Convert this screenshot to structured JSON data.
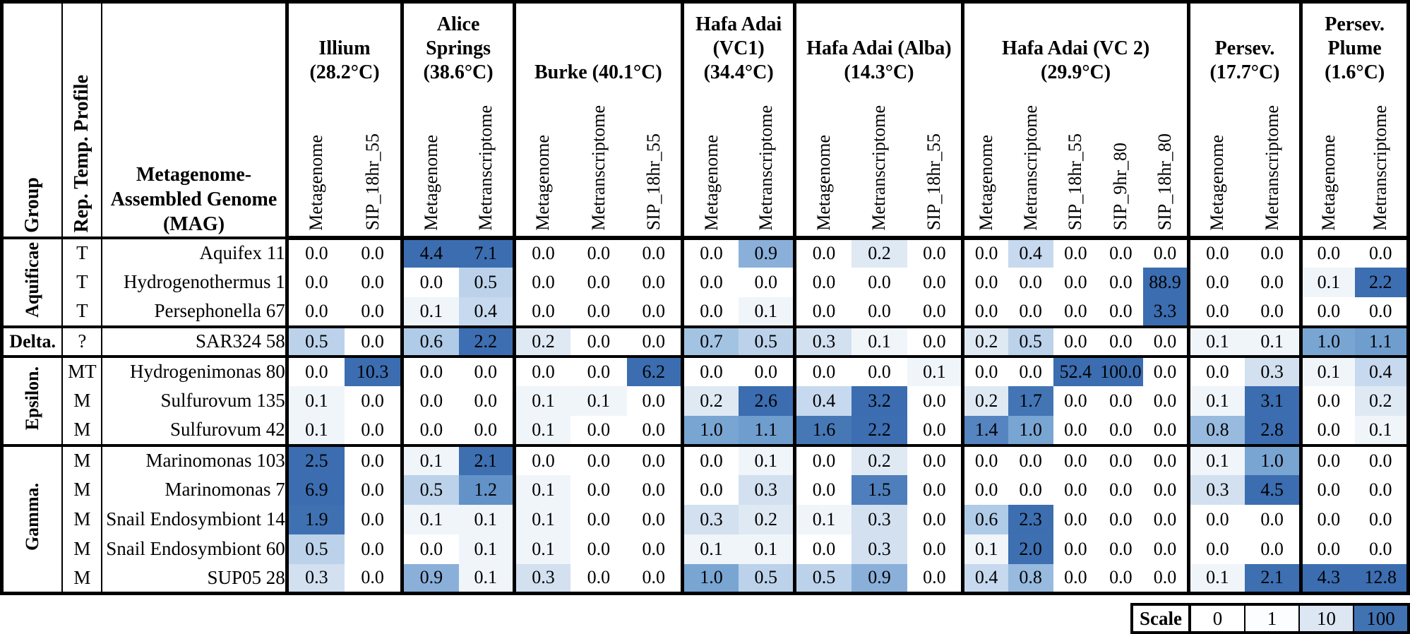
{
  "chart_data": {
    "type": "heatmap",
    "corner_headers": {
      "group": "Group",
      "profile": "Rep. Temp. Profile",
      "mag": "Metagenome-\nAssembled Genome\n(MAG)"
    },
    "column_groups": [
      {
        "label": "Illium\n(28.2°C)",
        "columns": [
          "Metagenome",
          "SIP_18hr_55"
        ]
      },
      {
        "label": "Alice\nSprings\n(38.6°C)",
        "columns": [
          "Metagenome",
          "Metranscriptome"
        ]
      },
      {
        "label": "Burke (40.1°C)",
        "columns": [
          "Metagenome",
          "Metranscriptome",
          "SIP_18hr_55"
        ]
      },
      {
        "label": "Hafa Adai\n(VC1)\n(34.4°C)",
        "columns": [
          "Metagenome",
          "Metranscriptome"
        ]
      },
      {
        "label": "Hafa Adai (Alba)\n(14.3°C)",
        "columns": [
          "Metagenome",
          "Metranscriptome",
          "SIP_18hr_55"
        ]
      },
      {
        "label": "Hafa Adai (VC 2) (29.9°C)",
        "columns": [
          "Metagenome",
          "Metranscriptome",
          "SIP_18hr_55",
          "SIP_9hr_80",
          "SIP_18hr_80"
        ]
      },
      {
        "label": "Persev.\n(17.7°C)",
        "columns": [
          "Metagenome",
          "Metranscriptome"
        ]
      },
      {
        "label": "Persev.\nPlume\n(1.6°C)",
        "columns": [
          "Metagenome",
          "Metranscriptome"
        ]
      }
    ],
    "row_groups": [
      {
        "label": "Aquificae",
        "vertical": true,
        "rows": [
          {
            "profile": "T",
            "mag": "Aquifex 11",
            "values": [
              0.0,
              0.0,
              4.4,
              7.1,
              0.0,
              0.0,
              0.0,
              0.0,
              0.9,
              0.0,
              0.2,
              0.0,
              0.0,
              0.4,
              0.0,
              0.0,
              0.0,
              0.0,
              0.0,
              0.0,
              0.0
            ]
          },
          {
            "profile": "T",
            "mag": "Hydrogenothermus 1",
            "values": [
              0.0,
              0.0,
              0.0,
              0.5,
              0.0,
              0.0,
              0.0,
              0.0,
              0.0,
              0.0,
              0.0,
              0.0,
              0.0,
              0.0,
              0.0,
              0.0,
              88.9,
              0.0,
              0.0,
              0.1,
              2.2
            ]
          },
          {
            "profile": "T",
            "mag": "Persephonella 67",
            "values": [
              0.0,
              0.0,
              0.1,
              0.4,
              0.0,
              0.0,
              0.0,
              0.0,
              0.1,
              0.0,
              0.0,
              0.0,
              0.0,
              0.0,
              0.0,
              0.0,
              3.3,
              0.0,
              0.0,
              0.0,
              0.0
            ]
          }
        ]
      },
      {
        "label": "Delta.",
        "vertical": false,
        "rows": [
          {
            "profile": "?",
            "mag": "SAR324 58",
            "values": [
              0.5,
              0.0,
              0.6,
              2.2,
              0.2,
              0.0,
              0.0,
              0.7,
              0.5,
              0.3,
              0.1,
              0.0,
              0.2,
              0.5,
              0.0,
              0.0,
              0.0,
              0.1,
              0.1,
              1.0,
              1.1
            ]
          }
        ]
      },
      {
        "label": "Epsilon.",
        "vertical": true,
        "rows": [
          {
            "profile": "MT",
            "mag": "Hydrogenimonas 80",
            "values": [
              0.0,
              10.3,
              0.0,
              0.0,
              0.0,
              0.0,
              6.2,
              0.0,
              0.0,
              0.0,
              0.0,
              0.1,
              0.0,
              0.0,
              52.4,
              100.0,
              0.0,
              0.0,
              0.3,
              0.1,
              0.4
            ]
          },
          {
            "profile": "M",
            "mag": "Sulfurovum 135",
            "values": [
              0.1,
              0.0,
              0.0,
              0.0,
              0.1,
              0.1,
              0.0,
              0.2,
              2.6,
              0.4,
              3.2,
              0.0,
              0.2,
              1.7,
              0.0,
              0.0,
              0.0,
              0.1,
              3.1,
              0.0,
              0.2
            ]
          },
          {
            "profile": "M",
            "mag": "Sulfurovum 42",
            "values": [
              0.1,
              0.0,
              0.0,
              0.0,
              0.1,
              0.0,
              0.0,
              1.0,
              1.1,
              1.6,
              2.2,
              0.0,
              1.4,
              1.0,
              0.0,
              0.0,
              0.0,
              0.8,
              2.8,
              0.0,
              0.1
            ]
          }
        ]
      },
      {
        "label": "Gamma.",
        "vertical": true,
        "rows": [
          {
            "profile": "M",
            "mag": "Marinomonas 103",
            "values": [
              2.5,
              0.0,
              0.1,
              2.1,
              0.0,
              0.0,
              0.0,
              0.0,
              0.1,
              0.0,
              0.2,
              0.0,
              0.0,
              0.0,
              0.0,
              0.0,
              0.0,
              0.1,
              1.0,
              0.0,
              0.0
            ]
          },
          {
            "profile": "M",
            "mag": "Marinomonas 7",
            "values": [
              6.9,
              0.0,
              0.5,
              1.2,
              0.1,
              0.0,
              0.0,
              0.0,
              0.3,
              0.0,
              1.5,
              0.0,
              0.0,
              0.0,
              0.0,
              0.0,
              0.0,
              0.3,
              4.5,
              0.0,
              0.0
            ]
          },
          {
            "profile": "M",
            "mag": "Snail Endosymbiont 14",
            "values": [
              1.9,
              0.0,
              0.1,
              0.1,
              0.1,
              0.0,
              0.0,
              0.3,
              0.2,
              0.1,
              0.3,
              0.0,
              0.6,
              2.3,
              0.0,
              0.0,
              0.0,
              0.0,
              0.0,
              0.0,
              0.0
            ]
          },
          {
            "profile": "M",
            "mag": "Snail Endosymbiont 60",
            "values": [
              0.5,
              0.0,
              0.0,
              0.1,
              0.1,
              0.0,
              0.0,
              0.1,
              0.1,
              0.0,
              0.3,
              0.0,
              0.1,
              2.0,
              0.0,
              0.0,
              0.0,
              0.0,
              0.0,
              0.0,
              0.0
            ]
          },
          {
            "profile": "M",
            "mag": "SUP05 28",
            "values": [
              0.3,
              0.0,
              0.9,
              0.1,
              0.3,
              0.0,
              0.0,
              1.0,
              0.5,
              0.5,
              0.9,
              0.0,
              0.4,
              0.8,
              0.0,
              0.0,
              0.0,
              0.1,
              2.1,
              4.3,
              12.8
            ]
          }
        ]
      }
    ],
    "scale": {
      "label": "Scale",
      "stops": [
        {
          "value": "0",
          "color": "#ffffff"
        },
        {
          "value": "1",
          "color": "#fbfdfe"
        },
        {
          "value": "10",
          "color": "#dde7f3"
        },
        {
          "value": "100",
          "color": "#4173b3"
        }
      ]
    },
    "colormap_anchors": [
      [
        0.0,
        "#ffffff"
      ],
      [
        0.05,
        "#f7fafc"
      ],
      [
        0.1,
        "#f0f5fa"
      ],
      [
        0.2,
        "#dfe9f4"
      ],
      [
        0.3,
        "#d2e0f0"
      ],
      [
        0.4,
        "#c7d9ee"
      ],
      [
        0.5,
        "#bbd2ea"
      ],
      [
        0.6,
        "#afcbe7"
      ],
      [
        0.7,
        "#a3c3e3"
      ],
      [
        0.8,
        "#97bade"
      ],
      [
        0.9,
        "#8ab0da"
      ],
      [
        1.0,
        "#79a5d3"
      ],
      [
        1.1,
        "#6f9dce"
      ],
      [
        1.2,
        "#6292c8"
      ],
      [
        1.4,
        "#5584c0"
      ],
      [
        1.6,
        "#4678b6"
      ],
      [
        1.8,
        "#4072b3"
      ],
      [
        2.0,
        "#3d6fb1"
      ],
      [
        2.5,
        "#3b6db0"
      ],
      [
        1000,
        "#3b6db0"
      ]
    ],
    "value_format_decimals": 1
  }
}
